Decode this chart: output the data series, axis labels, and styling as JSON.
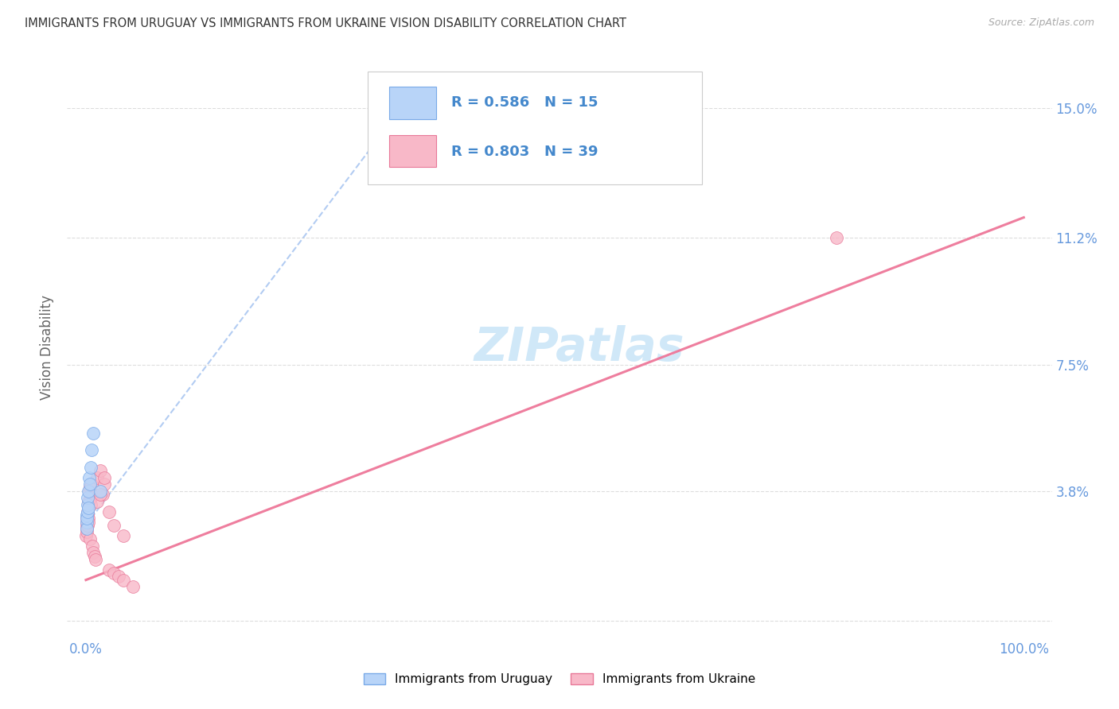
{
  "title": "IMMIGRANTS FROM URUGUAY VS IMMIGRANTS FROM UKRAINE VISION DISABILITY CORRELATION CHART",
  "source": "Source: ZipAtlas.com",
  "ylabel": "Vision Disability",
  "xlim": [
    -2,
    103
  ],
  "ylim": [
    -0.5,
    16.5
  ],
  "ytick_vals": [
    0,
    3.8,
    7.5,
    11.2,
    15.0
  ],
  "ytick_labels": [
    "",
    "3.8%",
    "7.5%",
    "11.2%",
    "15.0%"
  ],
  "xtick_vals": [
    0,
    20,
    40,
    60,
    80,
    100
  ],
  "xtick_labels": [
    "0.0%",
    "",
    "",
    "",
    "",
    "100.0%"
  ],
  "legend_label1": "Immigrants from Uruguay",
  "legend_label2": "Immigrants from Ukraine",
  "R1": "0.586",
  "N1": "15",
  "R2": "0.803",
  "N2": "39",
  "color1": "#b8d4f8",
  "color2": "#f8b8c8",
  "edge_color1": "#7aaae8",
  "edge_color2": "#e87898",
  "trend_color1": "#99bbee",
  "trend_color2": "#ee7799",
  "text_color_blue": "#4488cc",
  "text_color_dark": "#333333",
  "tick_color": "#6699dd",
  "grid_color": "#dddddd",
  "background_color": "#ffffff",
  "watermark_color": "#d0e8f8",
  "uruguay_x": [
    0.05,
    0.08,
    0.1,
    0.12,
    0.15,
    0.18,
    0.2,
    0.25,
    0.3,
    0.35,
    0.4,
    0.5,
    0.6,
    0.8,
    1.5
  ],
  "uruguay_y": [
    2.9,
    3.1,
    2.7,
    3.0,
    3.2,
    3.4,
    3.6,
    3.3,
    3.8,
    4.2,
    4.0,
    4.5,
    5.0,
    5.5,
    3.8
  ],
  "ukraine_x": [
    0.02,
    0.05,
    0.07,
    0.08,
    0.1,
    0.12,
    0.15,
    0.18,
    0.2,
    0.22,
    0.25,
    0.28,
    0.3,
    0.35,
    0.4,
    0.45,
    0.5,
    0.55,
    0.6,
    0.7,
    0.8,
    0.9,
    1.0,
    1.2,
    1.5,
    1.8,
    2.0,
    2.5,
    3.0,
    3.5,
    4.0,
    5.0,
    1.2,
    1.5,
    2.0,
    2.5,
    3.0,
    4.0,
    80.0
  ],
  "ukraine_y": [
    2.5,
    2.8,
    2.6,
    2.9,
    3.0,
    2.7,
    3.1,
    3.2,
    2.8,
    3.0,
    3.3,
    2.9,
    3.5,
    3.8,
    3.9,
    2.4,
    3.6,
    3.4,
    4.0,
    2.2,
    2.0,
    1.9,
    1.8,
    4.2,
    4.4,
    3.7,
    4.0,
    1.5,
    1.4,
    1.3,
    1.2,
    1.0,
    3.5,
    3.7,
    4.2,
    3.2,
    2.8,
    2.5,
    11.2
  ],
  "ury_trend_x0": 0,
  "ury_trend_y0": 2.8,
  "ury_trend_x1": 35,
  "ury_trend_y1": 15.5,
  "ukr_trend_x0": 0,
  "ukr_trend_y0": 1.2,
  "ukr_trend_x1": 100,
  "ukr_trend_y1": 11.8
}
